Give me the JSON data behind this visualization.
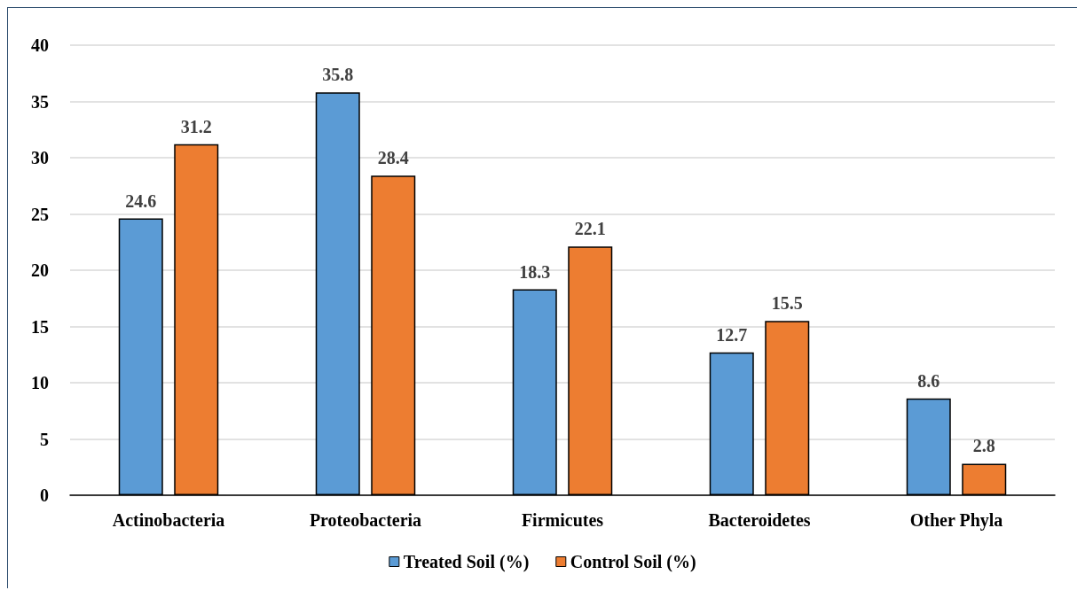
{
  "chart_data": {
    "type": "bar",
    "categories": [
      "Actinobacteria",
      "Proteobacteria",
      "Firmicutes",
      "Bacteroidetes",
      "Other Phyla"
    ],
    "series": [
      {
        "name": "Treated Soil (%)",
        "color": "#5b9bd5",
        "values": [
          24.6,
          35.8,
          18.3,
          12.7,
          8.6
        ]
      },
      {
        "name": "Control Soil (%)",
        "color": "#ed7d31",
        "values": [
          31.2,
          28.4,
          22.1,
          15.5,
          2.8
        ]
      }
    ],
    "ylim": [
      0,
      40
    ],
    "yticks": [
      0,
      5,
      10,
      15,
      20,
      25,
      30,
      35,
      40
    ],
    "grid": "y",
    "legend": "bottom",
    "data_labels": true
  }
}
